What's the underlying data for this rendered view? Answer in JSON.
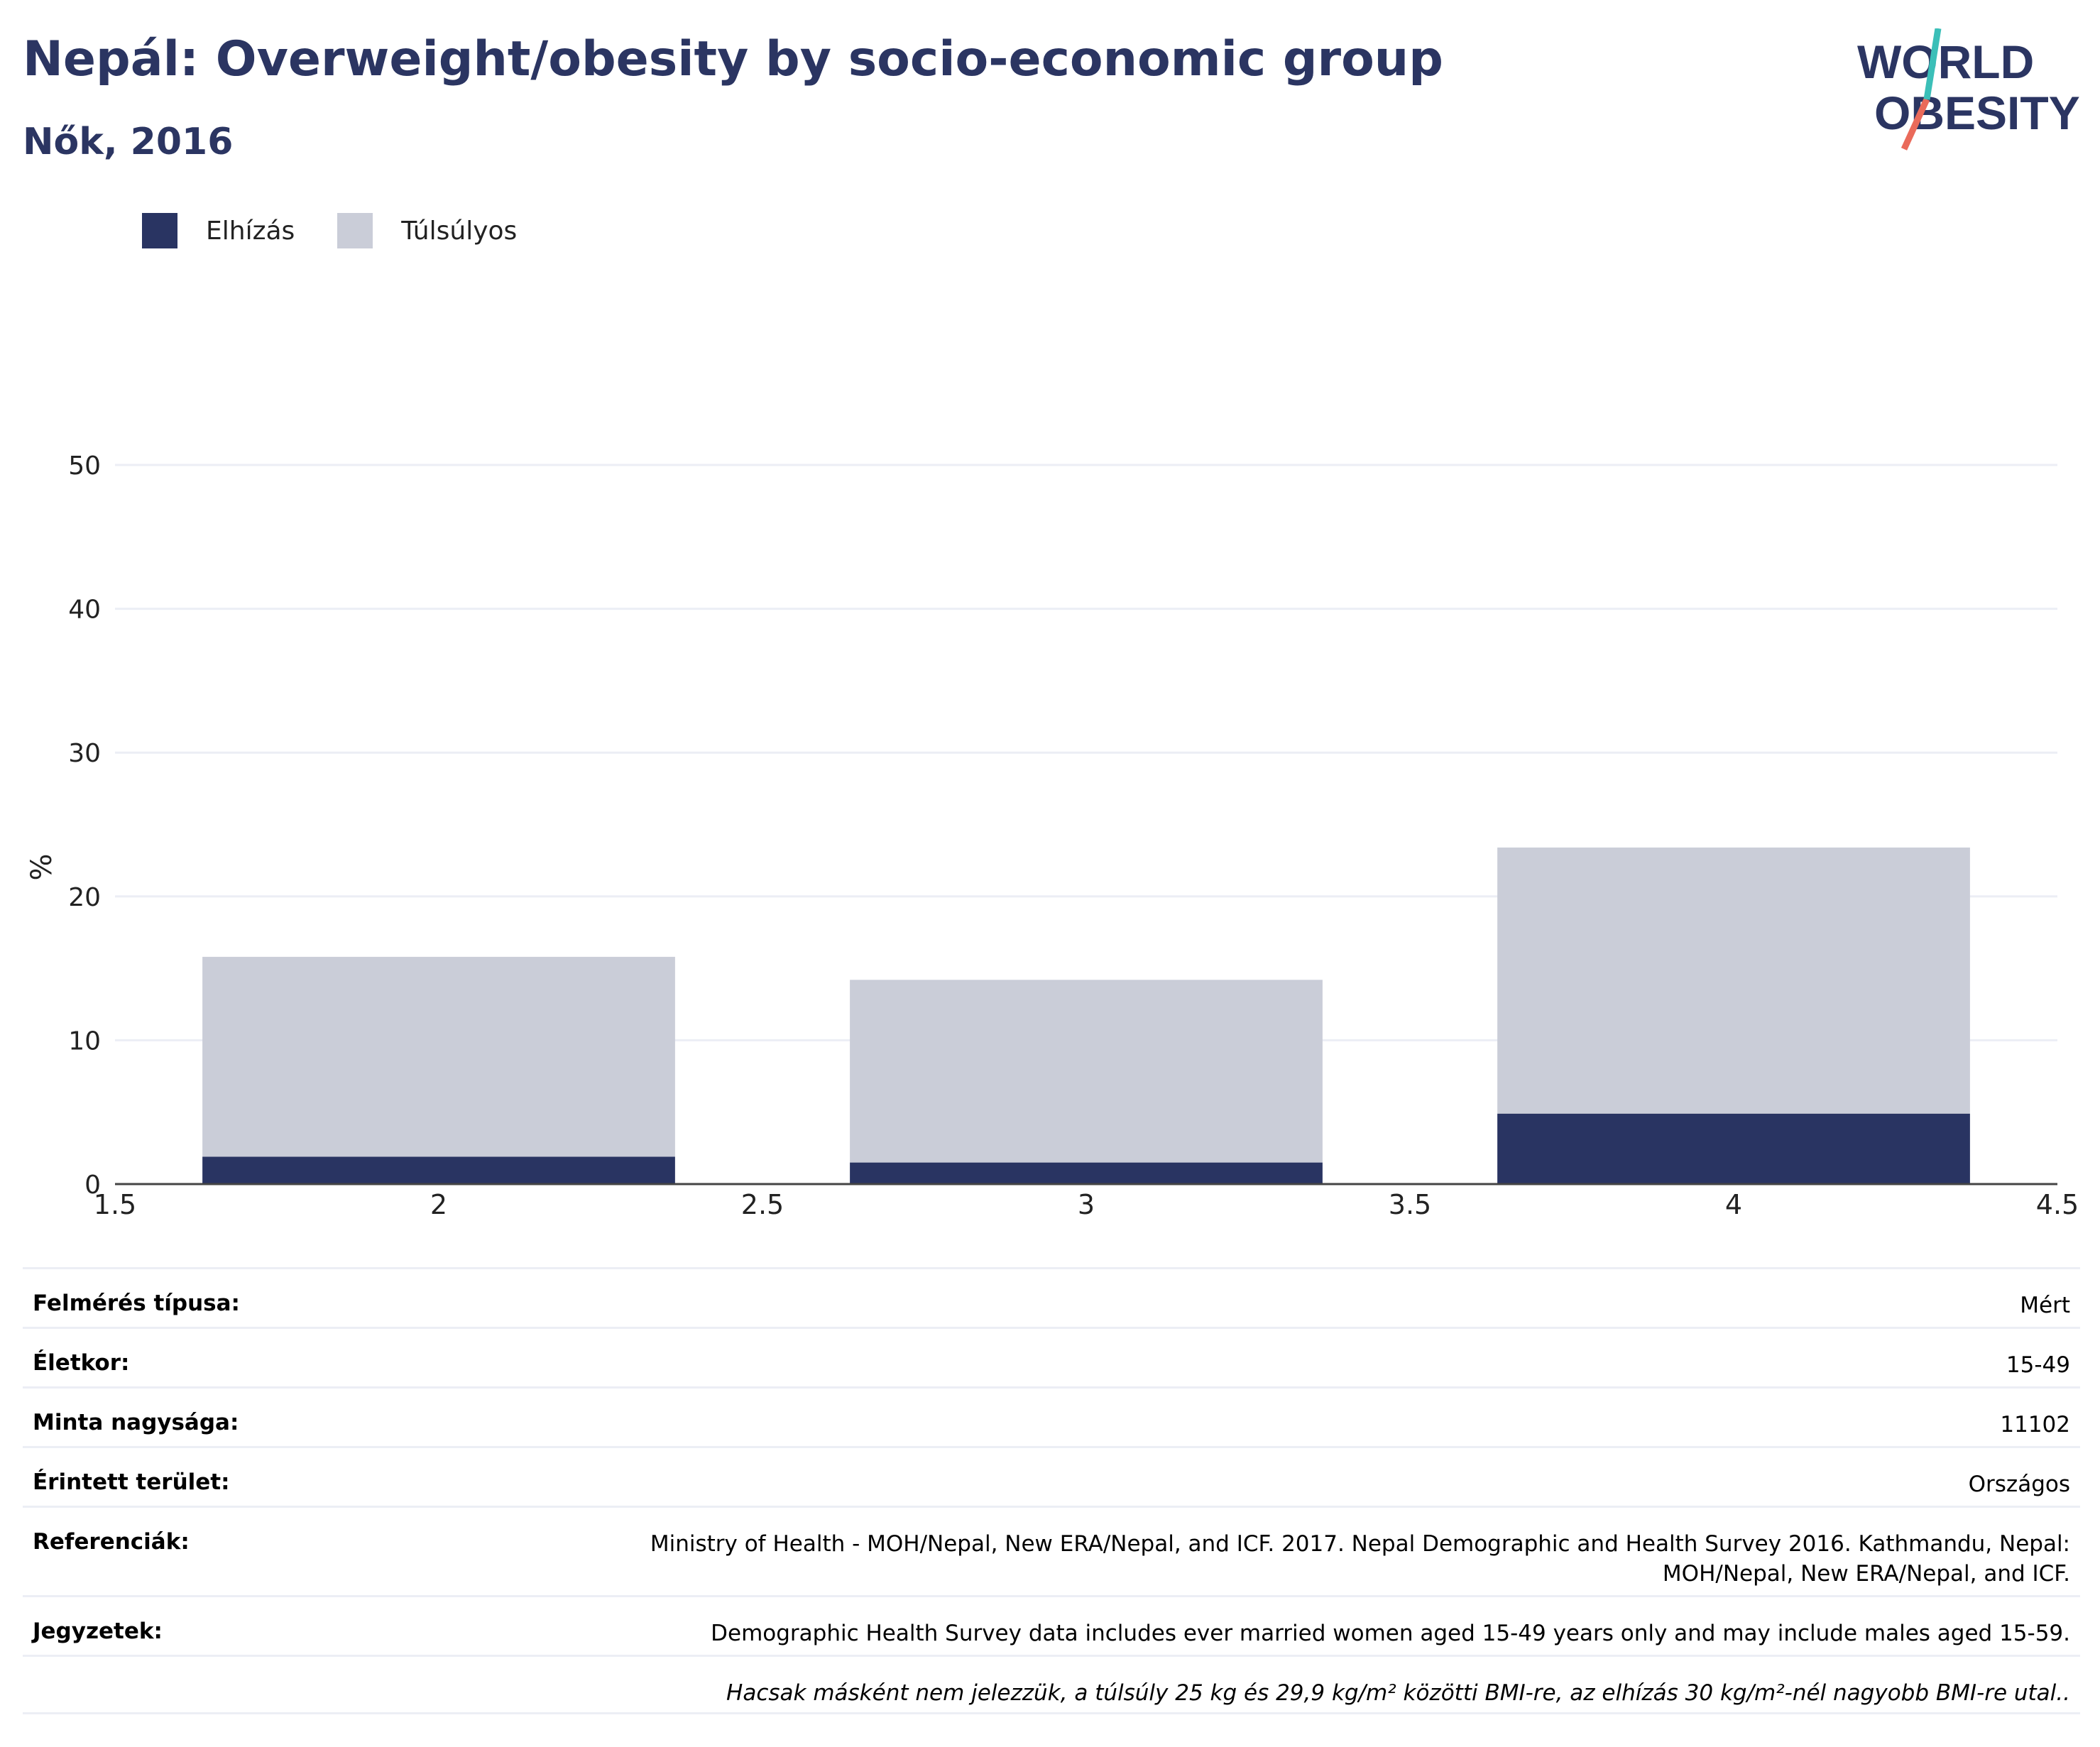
{
  "header": {
    "title": "Nepál: Overweight/obesity by socio-economic group",
    "subtitle": "Nők, 2016"
  },
  "logo": {
    "line1": "WORLD",
    "line2": "OBESITY"
  },
  "legend": [
    {
      "label": "Elhízás",
      "color": "#293462"
    },
    {
      "label": "Túlsúlyos",
      "color": "#cacdd8"
    }
  ],
  "chart_data": {
    "type": "bar",
    "stacked": true,
    "ylabel": "%",
    "xlabel": "",
    "x": [
      2,
      3,
      4
    ],
    "xlim": [
      1.5,
      4.5
    ],
    "ylim": [
      0,
      50
    ],
    "x_ticks": [
      "1.5",
      "2",
      "2.5",
      "3",
      "3.5",
      "4",
      "4.5"
    ],
    "y_ticks": [
      "0",
      "10",
      "20",
      "30",
      "40",
      "50"
    ],
    "grid": true,
    "legend_position": "top-left",
    "series": [
      {
        "name": "Elhízás",
        "color": "#293462",
        "values": [
          1.9,
          1.5,
          4.9
        ]
      },
      {
        "name": "Túlsúlyos",
        "color": "#cacdd8",
        "values": [
          13.9,
          12.7,
          18.5
        ]
      }
    ]
  },
  "info": [
    {
      "key": "Felmérés típusa:",
      "value": "Mért"
    },
    {
      "key": "Életkor:",
      "value": "15-49"
    },
    {
      "key": "Minta nagysága:",
      "value": "11102"
    },
    {
      "key": "Érintett terület:",
      "value": "Országos"
    },
    {
      "key": "Referenciák:",
      "value": "Ministry of Health - MOH/Nepal, New ERA/Nepal, and ICF. 2017. Nepal Demographic and Health Survey 2016. Kathmandu, Nepal: MOH/Nepal, New ERA/Nepal, and ICF."
    },
    {
      "key": "Jegyzetek:",
      "value": "Demographic Health Survey data includes ever married women aged 15-49 years only and may include males aged 15-59."
    },
    {
      "key": "",
      "value": "Hacsak másként nem jelezzük, a túlsúly 25 kg és 29,9 kg/m² közötti BMI-re, az elhízás 30 kg/m²-nél nagyobb BMI-re utal.."
    }
  ]
}
